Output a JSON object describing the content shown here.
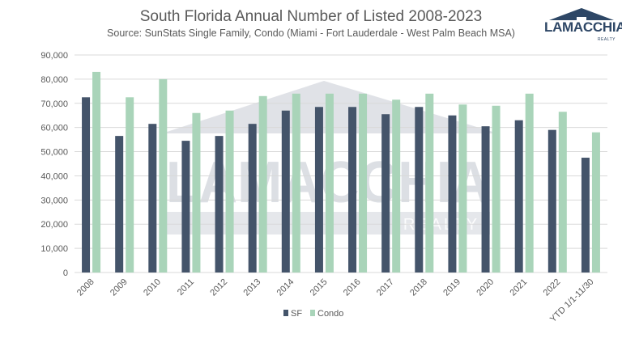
{
  "header": {
    "title": "South Florida Annual Number of Listed 2008-2023",
    "subtitle": "Source: SunStats Single Family, Condo (Miami - Fort Lauderdale - West Palm Beach MSA)"
  },
  "logo": {
    "name": "LAMACCHIA",
    "tagline": "REALTY"
  },
  "watermark": {
    "text": "LAMACCHIA",
    "subtext": "REALTY"
  },
  "colors": {
    "sf": "#44546a",
    "condo": "#a9d4b9",
    "grid": "#d9d9d9",
    "text": "#595959",
    "watermark": "#c6cad3"
  },
  "chart_data": {
    "type": "bar",
    "title": "South Florida Annual Number of Listed 2008-2023",
    "subtitle": "Source: SunStats Single Family, Condo (Miami - Fort Lauderdale - West Palm Beach MSA)",
    "categories": [
      "2008",
      "2009",
      "2010",
      "2011",
      "2012",
      "2013",
      "2014",
      "2015",
      "2016",
      "2017",
      "2018",
      "2019",
      "2020",
      "2021",
      "2022",
      "YTD 1/1-11/30"
    ],
    "series": [
      {
        "name": "SF",
        "values": [
          72500,
          56500,
          61500,
          54500,
          56500,
          61500,
          67000,
          68500,
          68500,
          65500,
          68500,
          65000,
          60500,
          63000,
          59000,
          47500
        ]
      },
      {
        "name": "Condo",
        "values": [
          83000,
          72500,
          80000,
          66000,
          67000,
          73000,
          74000,
          74000,
          74000,
          71500,
          74000,
          69500,
          69000,
          74000,
          66500,
          58000
        ]
      }
    ],
    "ylim": [
      0,
      90000
    ],
    "yticks": [
      0,
      10000,
      20000,
      30000,
      40000,
      50000,
      60000,
      70000,
      80000,
      90000
    ],
    "ytick_labels": [
      "0",
      "10,000",
      "20,000",
      "30,000",
      "40,000",
      "50,000",
      "60,000",
      "70,000",
      "80,000",
      "90,000"
    ],
    "grid": true,
    "legend_position": "bottom"
  }
}
